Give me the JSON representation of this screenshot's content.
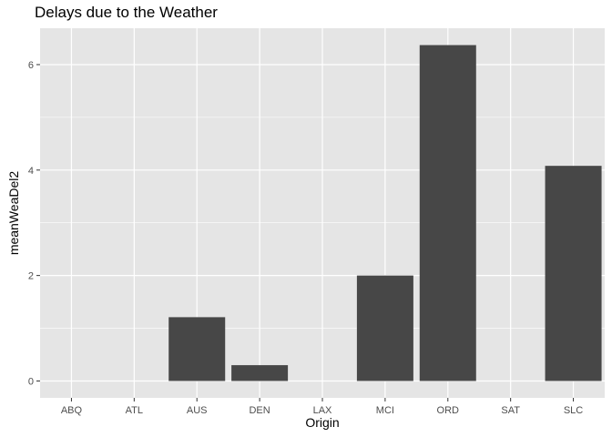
{
  "chart_data": {
    "type": "bar",
    "title": "Delays due to the Weather",
    "xlabel": "Origin",
    "ylabel": "meanWeaDel2",
    "categories": [
      "ABQ",
      "ATL",
      "AUS",
      "DEN",
      "LAX",
      "MCI",
      "ORD",
      "SAT",
      "SLC"
    ],
    "values": [
      0,
      0,
      1.21,
      0.3,
      0,
      2.0,
      6.37,
      0,
      4.08
    ],
    "y_ticks": [
      "0",
      "2",
      "4",
      "6"
    ],
    "ylim": [
      -0.32,
      6.69
    ],
    "grid": true,
    "colors": {
      "panel": "#e5e5e5",
      "grid": "#ffffff",
      "bar": "#474747",
      "tick_text": "#4d4d4d",
      "tick_mark": "#333333"
    }
  }
}
